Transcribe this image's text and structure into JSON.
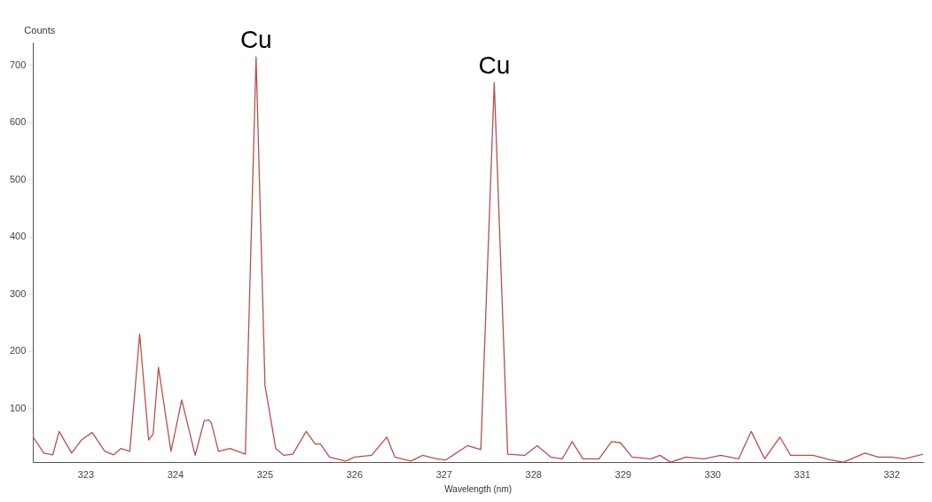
{
  "chart_data": {
    "type": "line",
    "xlabel": "Wavelength (nm)",
    "ylabel": "Counts",
    "annotations": [
      {
        "text": "Cu",
        "x": 324.9,
        "y": 715
      },
      {
        "text": "Cu",
        "x": 327.56,
        "y": 670
      }
    ],
    "series": [
      {
        "color": "#b5504e",
        "x": [
          322.41,
          322.53,
          322.63,
          322.7,
          322.84,
          322.95,
          323.07,
          323.21,
          323.31,
          323.39,
          323.49,
          323.6,
          323.7,
          323.75,
          323.81,
          323.95,
          324.07,
          324.22,
          324.32,
          324.37,
          324.4,
          324.48,
          324.61,
          324.78,
          324.9,
          325.0,
          325.12,
          325.21,
          325.31,
          325.46,
          325.56,
          325.62,
          325.72,
          325.9,
          326.0,
          326.19,
          326.36,
          326.45,
          326.63,
          326.76,
          326.92,
          327.02,
          327.26,
          327.41,
          327.56,
          327.71,
          327.9,
          328.04,
          328.19,
          328.32,
          328.43,
          328.55,
          328.73,
          328.87,
          328.97,
          329.1,
          329.31,
          329.41,
          329.53,
          329.7,
          329.9,
          330.09,
          330.29,
          330.43,
          330.58,
          330.75,
          330.87,
          331.12,
          331.32,
          331.46,
          331.7,
          331.85,
          332.0,
          332.14,
          332.35
        ],
        "values": [
          50,
          22,
          19,
          60,
          22,
          45,
          58,
          25,
          19,
          30,
          25,
          230,
          45,
          55,
          172,
          25,
          115,
          18,
          78,
          80,
          75,
          25,
          30,
          20,
          715,
          140,
          30,
          18,
          20,
          60,
          38,
          38,
          15,
          8,
          15,
          18,
          50,
          15,
          8,
          18,
          12,
          10,
          35,
          28,
          670,
          20,
          18,
          35,
          15,
          12,
          42,
          12,
          12,
          42,
          40,
          15,
          12,
          18,
          6,
          15,
          12,
          18,
          12,
          60,
          12,
          50,
          18,
          18,
          10,
          6,
          22,
          15,
          15,
          12,
          20
        ]
      }
    ],
    "xlim": [
      322.41,
      332.35
    ],
    "xticks": [
      323,
      324,
      325,
      326,
      327,
      328,
      329,
      330,
      331,
      332
    ],
    "ylim": [
      5,
      740
    ],
    "yticks": [
      100,
      200,
      300,
      400,
      500,
      600,
      700
    ],
    "grid": false,
    "legend": false,
    "marker": "none",
    "line_style": "solid"
  }
}
